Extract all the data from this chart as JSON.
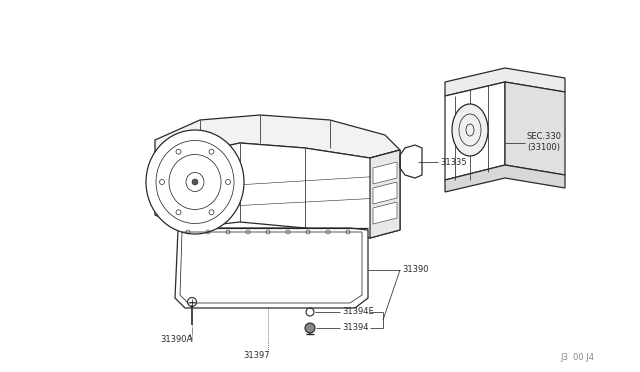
{
  "bg_color": "#ffffff",
  "line_color": "#2a2a2a",
  "lw_main": 0.9,
  "lw_thin": 0.55,
  "lw_detail": 0.4,
  "labels": {
    "sec330": "SEC.330",
    "sec33100": "(33100)",
    "p31335": "31335",
    "p31390": "31390",
    "p31390A": "31390A",
    "p31394E": "31394E",
    "p31394": "31394",
    "p31397": "31397",
    "watermark": "J3  00 J4"
  },
  "font_size": 6.0
}
